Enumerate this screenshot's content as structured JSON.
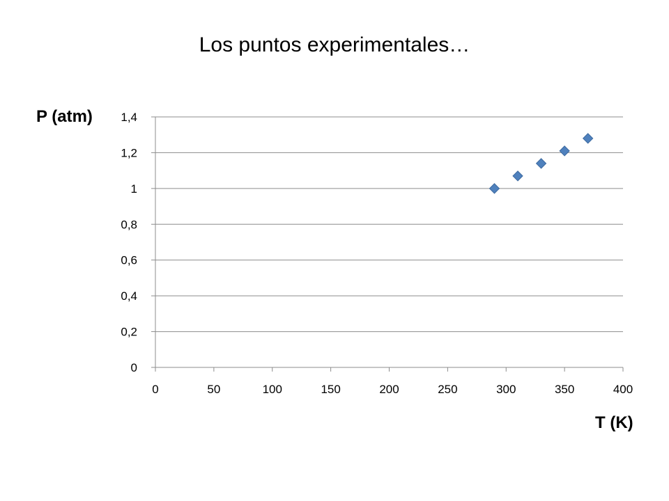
{
  "slide": {
    "title": "Los puntos experimentales…"
  },
  "chart_data": {
    "type": "scatter",
    "title": "",
    "xlabel": "T (K)",
    "ylabel": "P (atm)",
    "xlim": [
      0,
      400
    ],
    "ylim": [
      0,
      1.4
    ],
    "x_ticks": [
      "0",
      "50",
      "100",
      "150",
      "200",
      "250",
      "300",
      "350",
      "400"
    ],
    "y_ticks": [
      "0",
      "0,2",
      "0,4",
      "0,6",
      "0,8",
      "1",
      "1,2",
      "1,4"
    ],
    "grid": "horizontal",
    "marker": "diamond",
    "marker_color": "#4f81bd",
    "series": [
      {
        "x": [
          290,
          310,
          330,
          350,
          370
        ],
        "y": [
          1.0,
          1.07,
          1.14,
          1.21,
          1.28
        ]
      }
    ]
  }
}
